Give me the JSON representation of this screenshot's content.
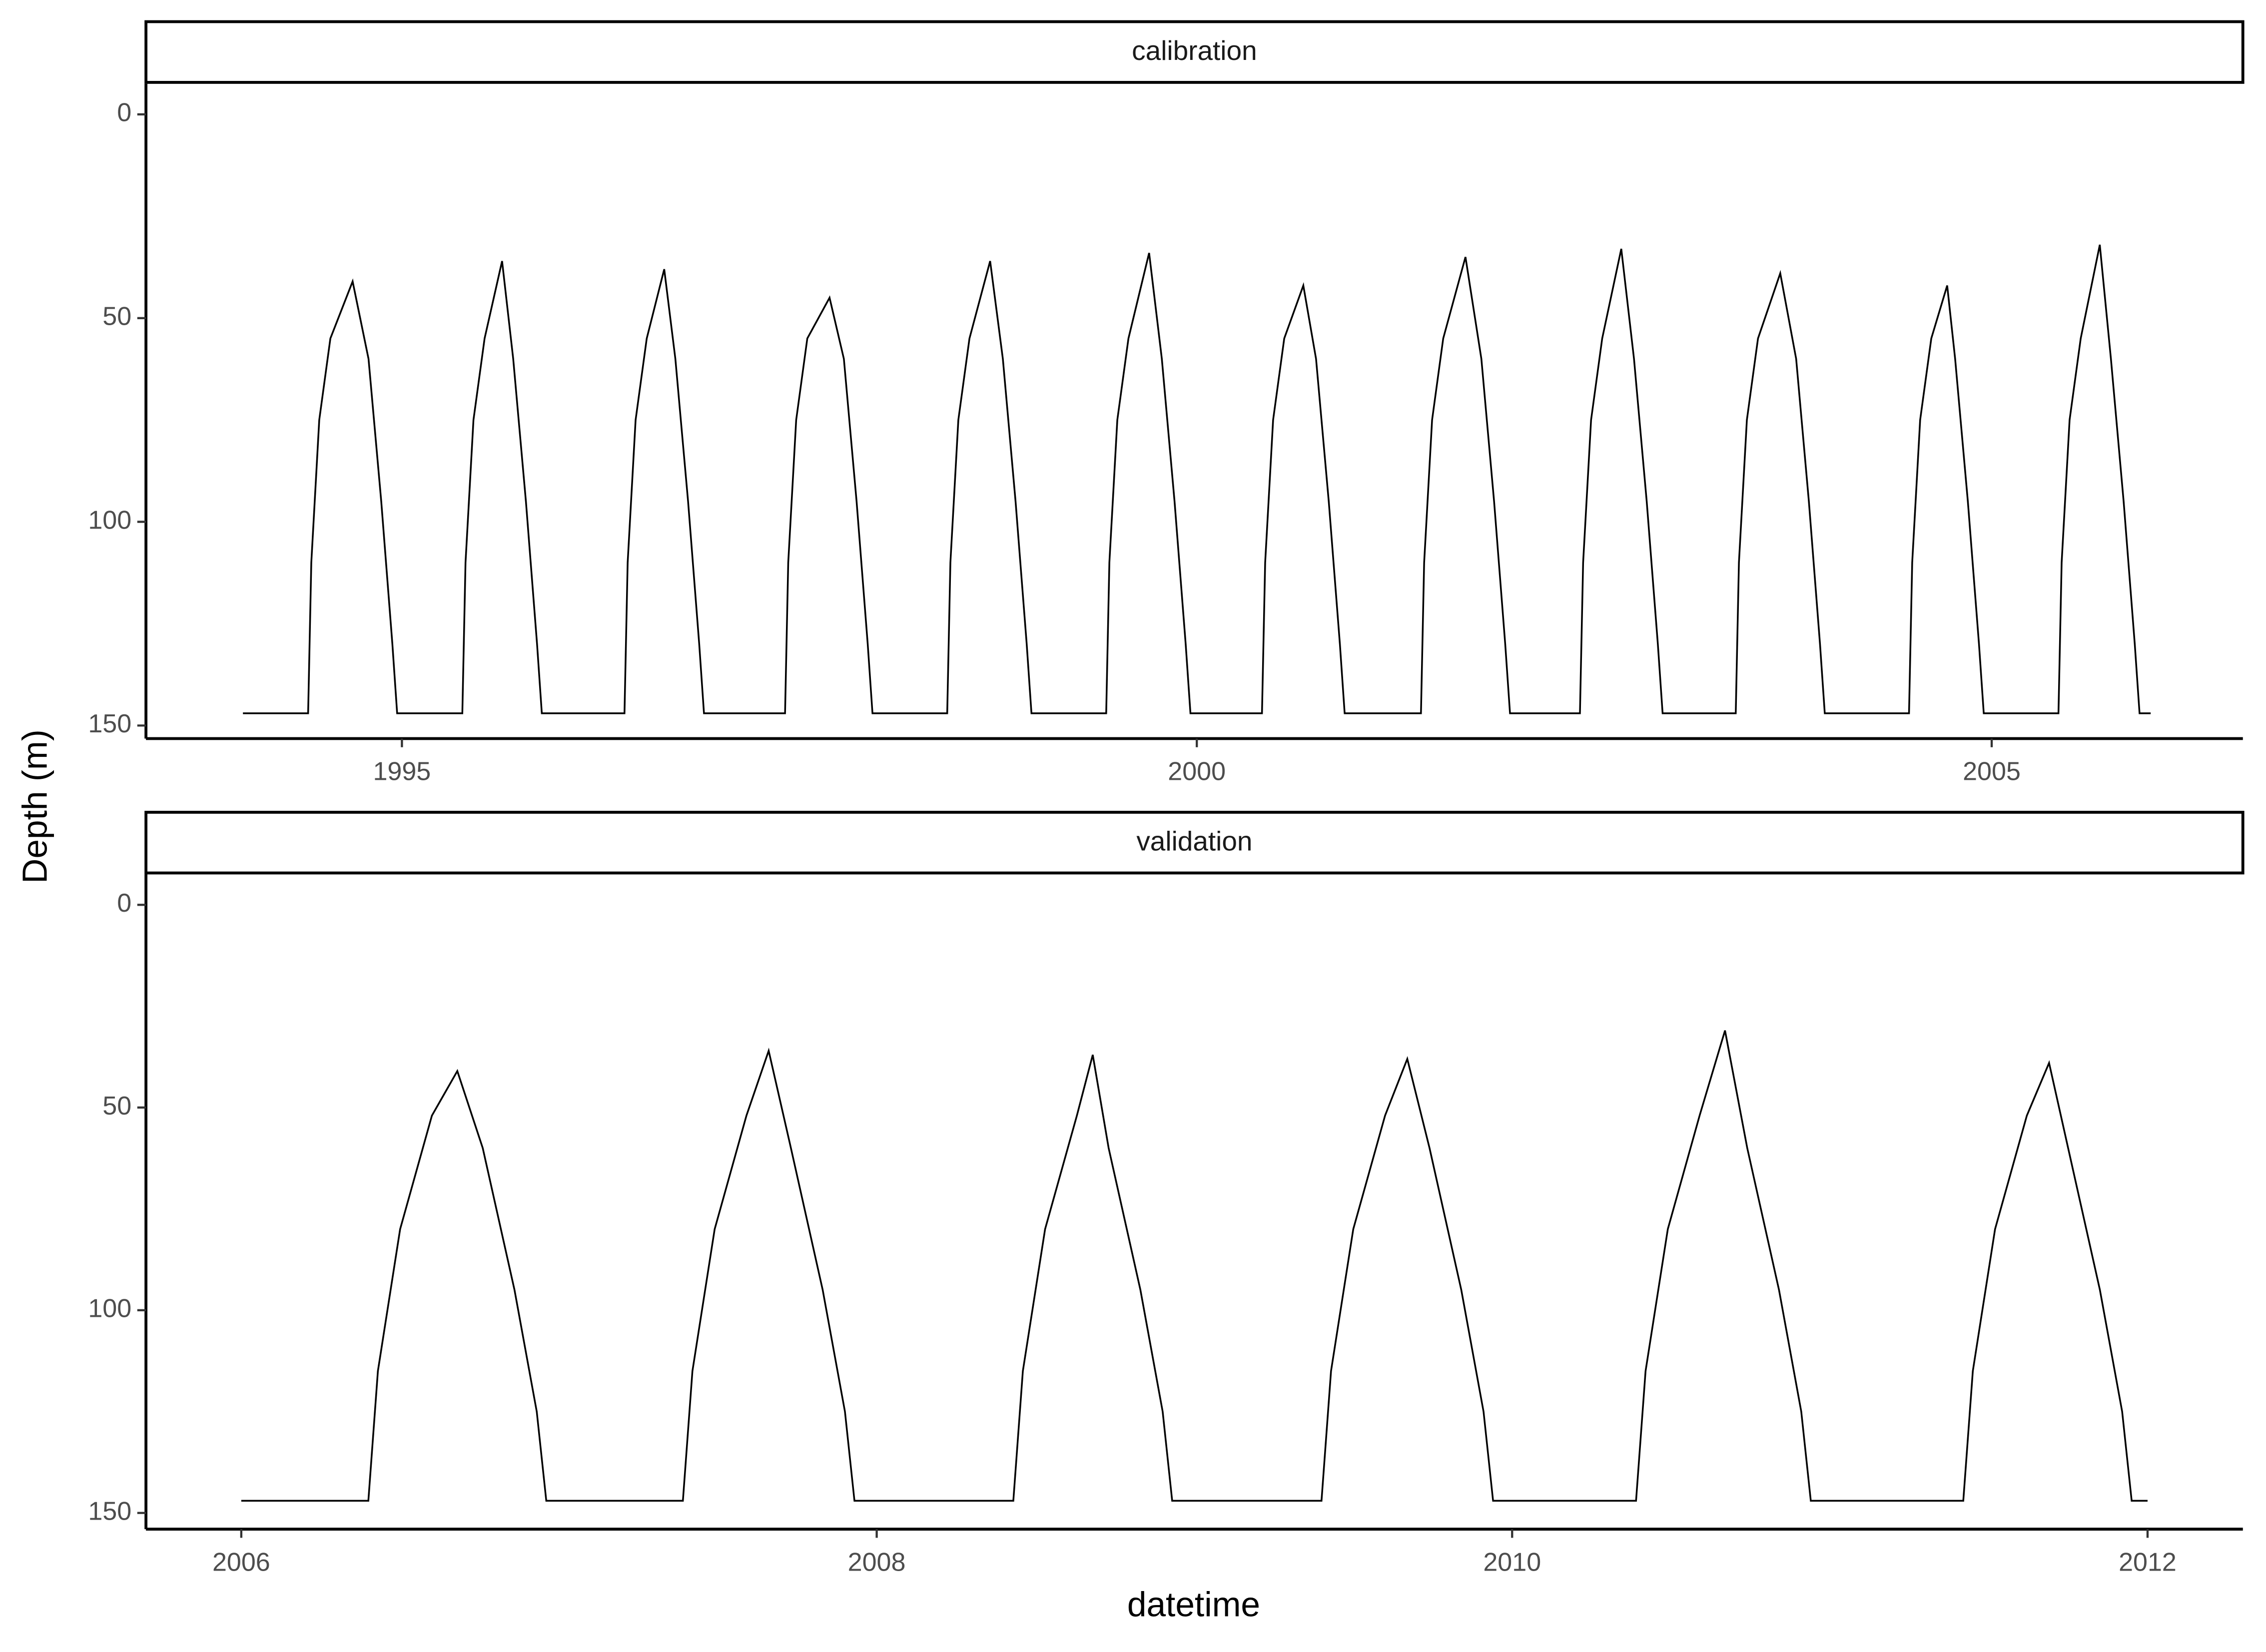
{
  "chart_data": {
    "type": "line",
    "x_label": "datetime",
    "y_label": "Depth (m)",
    "y_reversed": true,
    "color": "#000000",
    "panels": [
      {
        "title": "calibration",
        "x": [
          1994.0,
          1994.41,
          1994.43,
          1994.48,
          1994.55,
          1994.69,
          1994.79,
          1994.87,
          1994.94,
          1994.97,
          1995.38,
          1995.4,
          1995.45,
          1995.52,
          1995.63,
          1995.7,
          1995.78,
          1995.85,
          1995.88,
          1996.4,
          1996.42,
          1996.47,
          1996.54,
          1996.65,
          1996.72,
          1996.8,
          1996.87,
          1996.9,
          1997.41,
          1997.43,
          1997.48,
          1997.55,
          1997.69,
          1997.78,
          1997.86,
          1997.93,
          1997.96,
          1998.43,
          1998.45,
          1998.5,
          1998.57,
          1998.7,
          1998.78,
          1998.86,
          1998.93,
          1998.96,
          1999.43,
          1999.45,
          1999.5,
          1999.57,
          1999.7,
          1999.78,
          1999.86,
          1999.93,
          1999.96,
          2000.41,
          2000.43,
          2000.48,
          2000.55,
          2000.67,
          2000.75,
          2000.83,
          2000.9,
          2000.93,
          2001.41,
          2001.43,
          2001.48,
          2001.55,
          2001.69,
          2001.79,
          2001.87,
          2001.94,
          2001.97,
          2002.41,
          2002.43,
          2002.48,
          2002.55,
          2002.67,
          2002.75,
          2002.83,
          2002.9,
          2002.93,
          2003.39,
          2003.41,
          2003.46,
          2003.53,
          2003.67,
          2003.77,
          2003.85,
          2003.92,
          2003.95,
          2004.48,
          2004.5,
          2004.55,
          2004.62,
          2004.72,
          2004.77,
          2004.85,
          2004.92,
          2004.95,
          2005.42,
          2005.44,
          2005.49,
          2005.56,
          2005.68,
          2005.75,
          2005.83,
          2005.9,
          2005.93,
          2006.0
        ],
        "values": [
          147,
          147,
          110,
          75,
          55,
          41,
          60,
          95,
          130,
          147,
          147,
          110,
          75,
          55,
          36,
          60,
          95,
          130,
          147,
          147,
          110,
          75,
          55,
          38,
          60,
          95,
          130,
          147,
          147,
          110,
          75,
          55,
          45,
          60,
          95,
          130,
          147,
          147,
          110,
          75,
          55,
          36,
          60,
          95,
          130,
          147,
          147,
          110,
          75,
          55,
          34,
          60,
          95,
          130,
          147,
          147,
          110,
          75,
          55,
          42,
          60,
          95,
          130,
          147,
          147,
          110,
          75,
          55,
          35,
          60,
          95,
          130,
          147,
          147,
          110,
          75,
          55,
          33,
          60,
          95,
          130,
          147,
          147,
          110,
          75,
          55,
          39,
          60,
          95,
          130,
          147,
          147,
          110,
          75,
          55,
          42,
          60,
          95,
          130,
          147,
          147,
          110,
          75,
          55,
          32,
          60,
          95,
          130,
          147,
          147
        ],
        "xlim": [
          1993.39,
          2006.58
        ],
        "ylim": [
          -7.5,
          153.2
        ],
        "xticks": [
          1995,
          2000,
          2005
        ],
        "yticks": [
          0,
          50,
          100,
          150
        ]
      },
      {
        "title": "validation",
        "x": [
          2006.0,
          2006.4,
          2006.43,
          2006.5,
          2006.6,
          2006.68,
          2006.76,
          2006.86,
          2006.93,
          2006.96,
          2007.39,
          2007.42,
          2007.49,
          2007.59,
          2007.66,
          2007.73,
          2007.83,
          2007.9,
          2007.93,
          2008.43,
          2008.46,
          2008.53,
          2008.63,
          2008.68,
          2008.73,
          2008.83,
          2008.9,
          2008.93,
          2009.4,
          2009.43,
          2009.5,
          2009.6,
          2009.67,
          2009.74,
          2009.84,
          2009.91,
          2009.94,
          2010.39,
          2010.42,
          2010.49,
          2010.59,
          2010.67,
          2010.74,
          2010.84,
          2010.91,
          2010.94,
          2011.42,
          2011.45,
          2011.52,
          2011.62,
          2011.69,
          2011.75,
          2011.85,
          2011.92,
          2011.95,
          2012.0
        ],
        "values": [
          147,
          147,
          115,
          80,
          52,
          41,
          60,
          95,
          125,
          147,
          147,
          115,
          80,
          52,
          36,
          60,
          95,
          125,
          147,
          147,
          115,
          80,
          52,
          37,
          60,
          95,
          125,
          147,
          147,
          115,
          80,
          52,
          38,
          60,
          95,
          125,
          147,
          147,
          115,
          80,
          52,
          31,
          60,
          95,
          125,
          147,
          147,
          115,
          80,
          52,
          39,
          60,
          95,
          125,
          147,
          147
        ],
        "xlim": [
          2005.7,
          2012.3
        ],
        "ylim": [
          -7.5,
          154
        ],
        "xticks": [
          2006,
          2008,
          2010,
          2012
        ],
        "yticks": [
          0,
          50,
          100,
          150
        ]
      }
    ]
  }
}
